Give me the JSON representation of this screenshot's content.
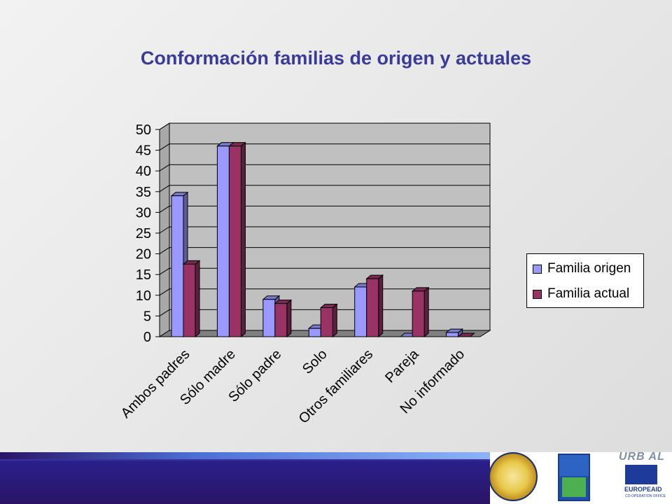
{
  "slide": {
    "title": "Conformación familias de origen y actuales"
  },
  "chart_data": {
    "type": "bar",
    "title": "",
    "categories": [
      "Ambos padres",
      "Sólo madre",
      "Sólo padre",
      "Solo",
      "Otros familiares",
      "Pareja",
      "No informado"
    ],
    "series": [
      {
        "name": "Familia origen",
        "values": [
          34,
          46,
          9,
          2,
          12,
          0,
          1
        ],
        "color": "#9999ff"
      },
      {
        "name": "Familia actual",
        "values": [
          17.5,
          46,
          8,
          7,
          14,
          11,
          0
        ],
        "color": "#993366"
      }
    ],
    "ylim": [
      0,
      50
    ],
    "yticks": [
      0,
      5,
      10,
      15,
      20,
      25,
      30,
      35,
      40,
      45,
      50
    ],
    "grid": true,
    "legend_position": "right",
    "colors": {
      "wall": "#c0c0c0",
      "floor": "#808080"
    }
  },
  "footer": {
    "logos": [
      {
        "name": "municipality-seal-logo"
      },
      {
        "name": "red-14-logo"
      },
      {
        "name": "eu-europeaid-logo"
      }
    ],
    "urbal_text": "URB AL",
    "europeaid_text": "EUROPEAID",
    "europeaid_sub": "CO-OPERATION OFFICE"
  }
}
